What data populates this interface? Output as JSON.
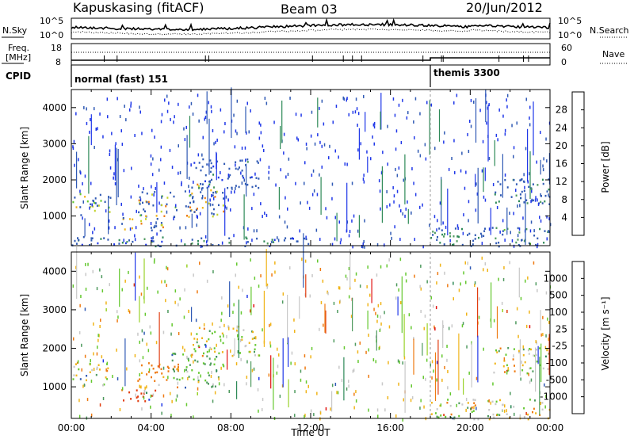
{
  "header": {
    "station": "Kapuskasing (fitACF)",
    "beam": "Beam 03",
    "date": "20/Jun/2012"
  },
  "noise_panel": {
    "left_label": "N.Sky",
    "right_label": "N.Search",
    "left_ticks": [
      "10^5",
      "10^0"
    ],
    "right_ticks": [
      "10^5",
      "10^0"
    ]
  },
  "freq_panel": {
    "left_label_1": "Freq.",
    "left_label_2": "[MHz]",
    "right_label": "Nave",
    "left_ticks": [
      "18",
      "8"
    ],
    "right_ticks": [
      "60",
      "0"
    ]
  },
  "cpid_panel": {
    "label": "CPID",
    "modes": [
      {
        "name": "normal (fast) 151",
        "start_hour": 0
      },
      {
        "name": "themis 3300",
        "start_hour": 18
      }
    ]
  },
  "chart_data": [
    {
      "type": "heatmap",
      "panel": "power",
      "ylabel": "Slant Range [km]",
      "ylim": [
        180,
        4500
      ],
      "yticks": [
        "1000",
        "2000",
        "3000",
        "4000"
      ],
      "xlim_hours": [
        0,
        24
      ],
      "colorbar_label": "Power [dB]",
      "colorbar_ticks": [
        "4",
        "8",
        "12",
        "16",
        "20",
        "24",
        "28"
      ],
      "colorbar_colors": [
        "#1f37e8",
        "#2f59b4",
        "#2e8a57",
        "#4e9a5e",
        "#64c82f",
        "#c2d22a",
        "#f0b418",
        "#ee7a12",
        "#e23d10",
        "#e2100f"
      ],
      "echo_regions": [
        {
          "t0": 0.0,
          "t1": 2.0,
          "r0": 1050,
          "r1": 1650,
          "level": 0.55
        },
        {
          "t0": 2.5,
          "t1": 4.7,
          "r0": 600,
          "r1": 1000,
          "level": 0.65
        },
        {
          "t0": 3.3,
          "t1": 6.2,
          "r0": 1000,
          "r1": 1750,
          "level": 0.6
        },
        {
          "t0": 5.8,
          "t1": 7.6,
          "r0": 1000,
          "r1": 1900,
          "level": 0.65
        },
        {
          "t0": 6.0,
          "t1": 9.4,
          "r0": 1800,
          "r1": 2600,
          "level": 0.2
        },
        {
          "t0": 0.0,
          "t1": 12.0,
          "r0": 180,
          "r1": 450,
          "level": 0.2
        },
        {
          "t0": 18.0,
          "t1": 24.0,
          "r0": 180,
          "r1": 700,
          "level": 0.3
        },
        {
          "t0": 21.0,
          "t1": 24.0,
          "r0": 1350,
          "r1": 2050,
          "level": 0.25
        },
        {
          "t0": 0.0,
          "t1": 24.0,
          "r0": 180,
          "r1": 4400,
          "level": 0.03
        }
      ]
    },
    {
      "type": "heatmap",
      "panel": "velocity",
      "ylabel": "Slant Range [km]",
      "ylim": [
        180,
        4500
      ],
      "yticks": [
        "1000",
        "2000",
        "3000",
        "4000"
      ],
      "xlabel": "Time UT",
      "xticks": [
        "00:00",
        "04:00",
        "08:00",
        "12:00",
        "16:00",
        "20:00",
        "00:00"
      ],
      "xlim_hours": [
        0,
        24
      ],
      "colorbar_label": "Velocity [m s⁻¹]",
      "colorbar_ticks": [
        "1000",
        "500",
        "100",
        "25",
        "-25",
        "-100",
        "-500",
        "-1000"
      ],
      "colorbar_colors": [
        "#1f37e8",
        "#2f59b4",
        "#2e8a57",
        "#4e9a5e",
        "#64c82f",
        "#9ad22a",
        "#c8c8c8",
        "#c8c8c8",
        "#f0b418",
        "#ee7a12",
        "#e23d10",
        "#e2100f"
      ],
      "echo_regions": [
        {
          "t0": 0.0,
          "t1": 2.0,
          "r0": 1050,
          "r1": 1650,
          "vel": 0
        },
        {
          "t0": 2.5,
          "t1": 4.6,
          "r0": 580,
          "r1": 950,
          "vel": -600
        },
        {
          "t0": 3.3,
          "t1": 5.4,
          "r0": 1000,
          "r1": 1650,
          "vel": -200
        },
        {
          "t0": 5.0,
          "t1": 7.6,
          "r0": 1000,
          "r1": 1900,
          "vel": 150
        },
        {
          "t0": 6.0,
          "t1": 9.4,
          "r0": 1800,
          "r1": 2600,
          "vel": 0
        },
        {
          "t0": 18.0,
          "t1": 24.0,
          "r0": 180,
          "r1": 700,
          "vel": 0
        },
        {
          "t0": 21.0,
          "t1": 24.0,
          "r0": 1350,
          "r1": 2050,
          "vel": 0
        },
        {
          "t0": 0.0,
          "t1": 24.0,
          "r0": 180,
          "r1": 4400,
          "vel": 0
        }
      ]
    }
  ],
  "xaxis": {
    "label": "Time UT",
    "ticks": [
      "00:00",
      "04:00",
      "08:00",
      "12:00",
      "16:00",
      "20:00",
      "00:00"
    ]
  }
}
